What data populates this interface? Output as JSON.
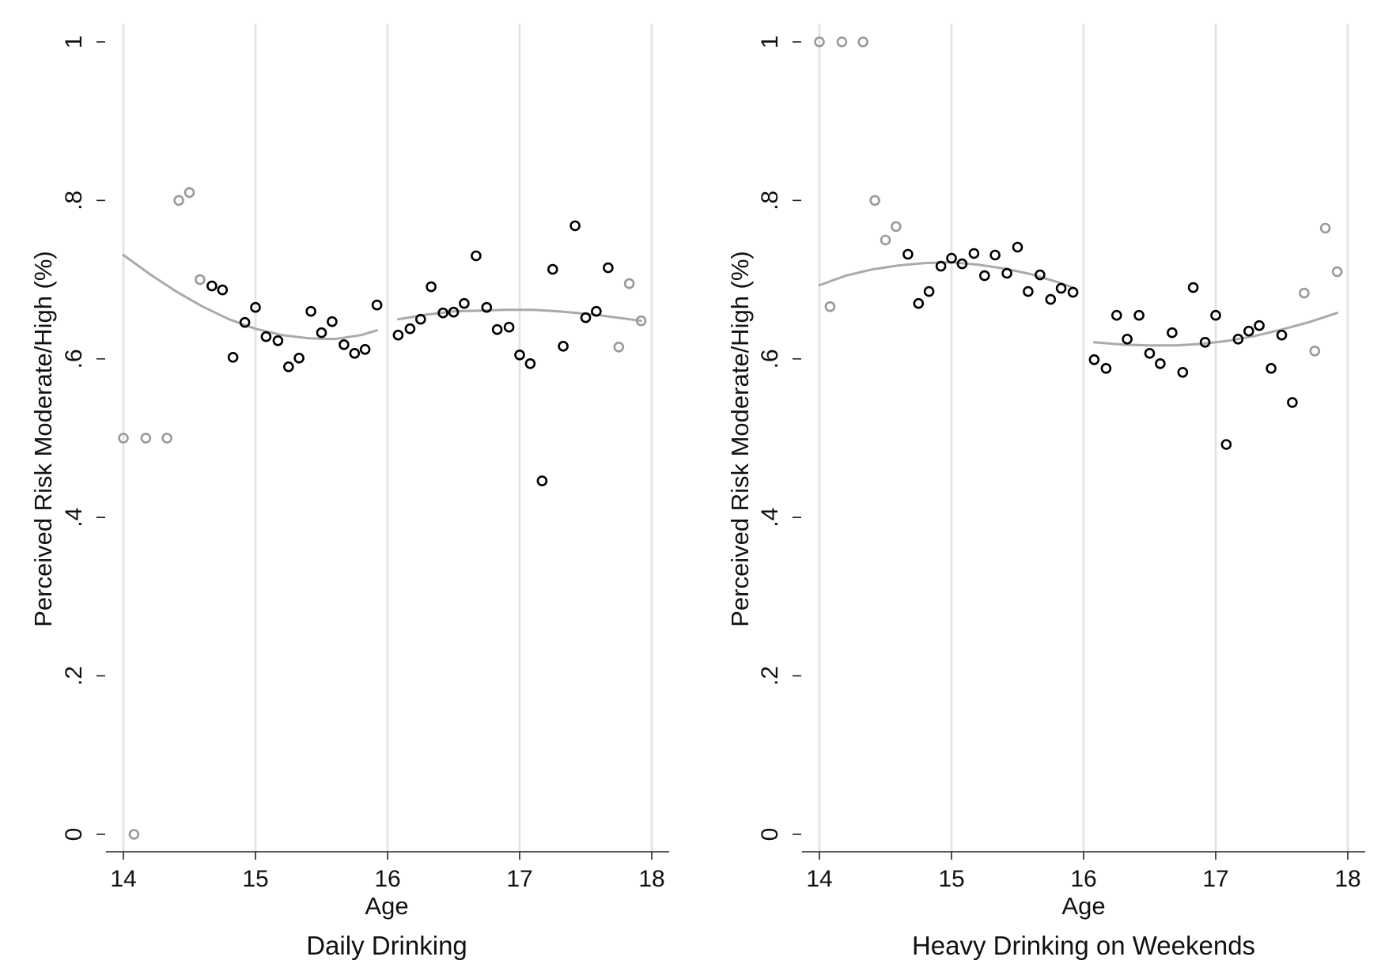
{
  "chart_data": [
    {
      "type": "scatter",
      "title": "Daily Drinking",
      "xlabel": "Age",
      "ylabel": "Perceived Risk Moderate/High (%)",
      "xlim": [
        14,
        18
      ],
      "ylim": [
        0,
        1
      ],
      "xticks": [
        14,
        15,
        16,
        17,
        18
      ],
      "xtick_labels": [
        "14",
        "15",
        "16",
        "17",
        "18"
      ],
      "yticks": [
        0,
        0.2,
        0.4,
        0.6,
        0.8,
        1
      ],
      "ytick_labels": [
        "0",
        ".2",
        ".4",
        ".6",
        ".8",
        "1"
      ],
      "vertical_gridlines": true,
      "colors": {
        "main": "#000000",
        "light": "#999999",
        "fit": "#aaaaaa",
        "grid": "#dde8e8"
      },
      "series": [
        {
          "points": [
            [
              14.75,
              0.687
            ],
            [
              14.83,
              0.602
            ],
            [
              14.92,
              0.646
            ],
            [
              15.0,
              0.665
            ],
            [
              15.08,
              0.628
            ],
            [
              15.17,
              0.623
            ],
            [
              15.25,
              0.59
            ],
            [
              15.33,
              0.601
            ],
            [
              15.42,
              0.66
            ],
            [
              15.5,
              0.633
            ],
            [
              15.58,
              0.647
            ],
            [
              15.67,
              0.618
            ],
            [
              15.75,
              0.607
            ],
            [
              15.83,
              0.612
            ],
            [
              15.92,
              0.668
            ],
            [
              16.08,
              0.63
            ],
            [
              16.17,
              0.638
            ],
            [
              16.25,
              0.65
            ],
            [
              16.33,
              0.691
            ],
            [
              16.42,
              0.658
            ],
            [
              16.5,
              0.659
            ],
            [
              16.58,
              0.67
            ],
            [
              16.67,
              0.73
            ],
            [
              16.75,
              0.665
            ],
            [
              16.83,
              0.637
            ],
            [
              16.92,
              0.64
            ],
            [
              17.0,
              0.605
            ],
            [
              17.08,
              0.594
            ],
            [
              17.17,
              0.446
            ],
            [
              17.25,
              0.713
            ],
            [
              17.33,
              0.616
            ],
            [
              17.42,
              0.768
            ],
            [
              17.5,
              0.652
            ],
            [
              17.58,
              0.66
            ],
            [
              17.67,
              0.715
            ],
            [
              14.67,
              0.692
            ]
          ]
        },
        {
          "points": [
            [
              14.0,
              0.5
            ],
            [
              14.08,
              0.0
            ],
            [
              14.17,
              0.5
            ],
            [
              14.33,
              0.5
            ],
            [
              14.42,
              0.8
            ],
            [
              14.5,
              0.81
            ],
            [
              14.58,
              0.7
            ],
            [
              17.75,
              0.615
            ],
            [
              17.83,
              0.695
            ],
            [
              17.92,
              0.648
            ]
          ]
        }
      ],
      "fit_lines": [
        {
          "x": [
            14.0,
            14.2,
            14.4,
            14.6,
            14.8,
            15.0,
            15.2,
            15.4,
            15.6,
            15.8,
            15.92
          ],
          "y": [
            0.731,
            0.707,
            0.685,
            0.666,
            0.65,
            0.638,
            0.63,
            0.626,
            0.625,
            0.63,
            0.636
          ]
        },
        {
          "x": [
            16.08,
            16.3,
            16.5,
            16.7,
            16.9,
            17.1,
            17.3,
            17.5,
            17.7,
            17.92
          ],
          "y": [
            0.65,
            0.656,
            0.66,
            0.661,
            0.662,
            0.662,
            0.66,
            0.657,
            0.653,
            0.648
          ]
        }
      ]
    },
    {
      "type": "scatter",
      "title": "Heavy Drinking on Weekends",
      "xlabel": "Age",
      "ylabel": "Perceived Risk Moderate/High (%)",
      "xlim": [
        14,
        18
      ],
      "ylim": [
        0,
        1
      ],
      "xticks": [
        14,
        15,
        16,
        17,
        18
      ],
      "xtick_labels": [
        "14",
        "15",
        "16",
        "17",
        "18"
      ],
      "yticks": [
        0,
        0.2,
        0.4,
        0.6,
        0.8,
        1
      ],
      "ytick_labels": [
        "0",
        ".2",
        ".4",
        ".6",
        ".8",
        "1"
      ],
      "vertical_gridlines": true,
      "colors": {
        "main": "#000000",
        "light": "#999999",
        "fit": "#aaaaaa",
        "grid": "#dde8e8"
      },
      "series": [
        {
          "points": [
            [
              14.67,
              0.732
            ],
            [
              14.75,
              0.67
            ],
            [
              14.83,
              0.685
            ],
            [
              14.92,
              0.717
            ],
            [
              15.0,
              0.727
            ],
            [
              15.08,
              0.72
            ],
            [
              15.17,
              0.733
            ],
            [
              15.25,
              0.705
            ],
            [
              15.33,
              0.731
            ],
            [
              15.42,
              0.708
            ],
            [
              15.5,
              0.741
            ],
            [
              15.58,
              0.685
            ],
            [
              15.67,
              0.706
            ],
            [
              15.75,
              0.675
            ],
            [
              15.83,
              0.689
            ],
            [
              15.92,
              0.684
            ],
            [
              16.08,
              0.599
            ],
            [
              16.17,
              0.588
            ],
            [
              16.25,
              0.655
            ],
            [
              16.33,
              0.625
            ],
            [
              16.42,
              0.655
            ],
            [
              16.5,
              0.607
            ],
            [
              16.58,
              0.594
            ],
            [
              16.67,
              0.633
            ],
            [
              16.75,
              0.583
            ],
            [
              16.83,
              0.69
            ],
            [
              16.92,
              0.621
            ],
            [
              17.0,
              0.655
            ],
            [
              17.08,
              0.492
            ],
            [
              17.17,
              0.625
            ],
            [
              17.25,
              0.635
            ],
            [
              17.33,
              0.642
            ],
            [
              17.42,
              0.588
            ],
            [
              17.5,
              0.63
            ],
            [
              17.58,
              0.545
            ]
          ]
        },
        {
          "points": [
            [
              14.0,
              1.0
            ],
            [
              14.08,
              0.666
            ],
            [
              14.17,
              1.0
            ],
            [
              14.33,
              1.0
            ],
            [
              14.42,
              0.8
            ],
            [
              14.5,
              0.75
            ],
            [
              14.58,
              0.767
            ],
            [
              17.67,
              0.683
            ],
            [
              17.75,
              0.61
            ],
            [
              17.83,
              0.765
            ],
            [
              17.92,
              0.71
            ]
          ]
        }
      ],
      "fit_lines": [
        {
          "x": [
            14.0,
            14.2,
            14.4,
            14.6,
            14.8,
            15.0,
            15.2,
            15.4,
            15.6,
            15.8,
            15.92
          ],
          "y": [
            0.693,
            0.705,
            0.713,
            0.718,
            0.721,
            0.722,
            0.719,
            0.714,
            0.707,
            0.697,
            0.69
          ]
        },
        {
          "x": [
            16.08,
            16.3,
            16.5,
            16.7,
            16.9,
            17.1,
            17.3,
            17.5,
            17.7,
            17.92
          ],
          "y": [
            0.621,
            0.618,
            0.617,
            0.617,
            0.619,
            0.623,
            0.629,
            0.637,
            0.646,
            0.658
          ]
        }
      ]
    }
  ]
}
